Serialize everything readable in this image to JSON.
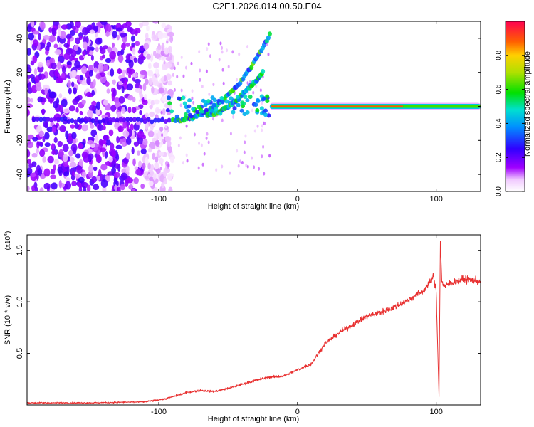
{
  "page_title": "C2E1.2026.014.00.50.E04",
  "colors": {
    "line": "#e83030",
    "frame": "#000000",
    "background": "#ffffff"
  },
  "chart_data": [
    {
      "type": "heatmap",
      "title": "C2E1.2026.014.00.50.E04",
      "xlabel": "Height of straight line (km)",
      "ylabel": "Frequency (Hz)",
      "xlim": [
        -195,
        132
      ],
      "ylim": [
        -50,
        50
      ],
      "xticks": [
        -100,
        0,
        100
      ],
      "xtick_labels": [
        "-100",
        "0",
        "100"
      ],
      "yticks": [
        -40,
        -20,
        0,
        20,
        40
      ],
      "ytick_labels": [
        "-40",
        "-20",
        "0",
        "20",
        "40"
      ],
      "colorbar": {
        "label": "Normalized spectral amplitude",
        "range": [
          0,
          1
        ],
        "ticks": [
          0.0,
          0.2,
          0.4,
          0.6,
          0.8
        ],
        "tick_labels": [
          "0.0",
          "0.2",
          "0.4",
          "0.6",
          "0.8"
        ]
      },
      "features": [
        {
          "name": "carrier line",
          "x_range": [
            -20,
            132
          ],
          "frequency_hz": 0,
          "amplitude": 0.9
        },
        {
          "name": "rising trace A",
          "x_range": [
            -90,
            -20
          ],
          "frequency_hz_range": [
            0,
            42
          ],
          "amplitude": 0.5
        },
        {
          "name": "rising trace B",
          "x_range": [
            -65,
            -25
          ],
          "frequency_hz_range": [
            -5,
            20
          ],
          "amplitude": 0.4
        },
        {
          "name": "noise region",
          "x_range": [
            -195,
            -100
          ],
          "frequency_hz_range": [
            -50,
            50
          ],
          "amplitude": 0.2
        }
      ]
    },
    {
      "type": "line",
      "xlabel": "Height of straight line (km)",
      "ylabel": "SNR (10 * v/v)",
      "y_multiplier_label": "(x10",
      "y_multiplier_exp": "4",
      "y_multiplier_close": ")",
      "xlim": [
        -195,
        132
      ],
      "ylim": [
        0,
        1.65
      ],
      "xticks": [
        -100,
        0,
        100
      ],
      "xtick_labels": [
        "-100",
        "0",
        "100"
      ],
      "yticks": [
        0.5,
        1.0,
        1.5
      ],
      "ytick_labels": [
        "0.5",
        "1.0",
        "1.5"
      ],
      "series": [
        {
          "name": "SNR",
          "color": "#e83030",
          "x": [
            -195,
            -150,
            -110,
            -95,
            -80,
            -70,
            -60,
            -50,
            -40,
            -30,
            -20,
            -10,
            0,
            10,
            20,
            30,
            40,
            50,
            60,
            70,
            80,
            90,
            95,
            98,
            100,
            102,
            103,
            104,
            106,
            110,
            120,
            132
          ],
          "y": [
            0.02,
            0.02,
            0.03,
            0.06,
            0.12,
            0.14,
            0.13,
            0.16,
            0.2,
            0.24,
            0.27,
            0.28,
            0.34,
            0.4,
            0.6,
            0.7,
            0.78,
            0.86,
            0.9,
            0.95,
            1.02,
            1.1,
            1.18,
            1.25,
            1.1,
            0.08,
            1.6,
            1.2,
            1.15,
            1.18,
            1.22,
            1.2
          ]
        }
      ]
    }
  ]
}
